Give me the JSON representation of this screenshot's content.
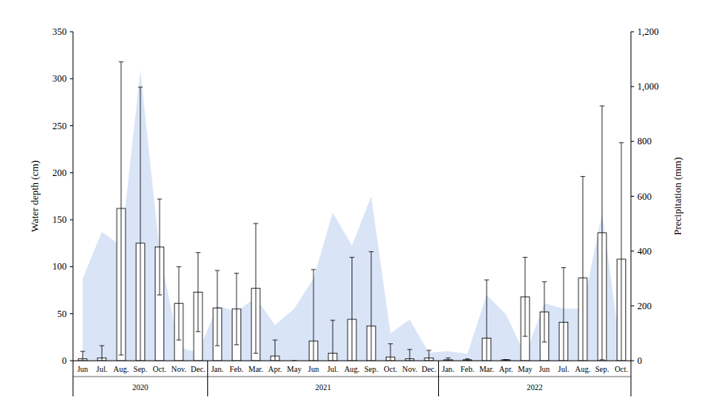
{
  "chart_data": {
    "type": "bar",
    "categories": [
      "Jun",
      "Jul.",
      "Aug.",
      "Sep.",
      "Oct.",
      "Nov.",
      "Dec.",
      "Jan.",
      "Feb.",
      "Mar.",
      "Apr.",
      "May",
      "Jun",
      "Jul.",
      "Aug.",
      "Sep.",
      "Oct.",
      "Nov.",
      "Dec.",
      "Jan.",
      "Feb.",
      "Mar.",
      "Apr.",
      "May",
      "Jun",
      "Jul.",
      "Aug.",
      "Sep.",
      "Oct."
    ],
    "x_groups": [
      {
        "label": "2020",
        "count": 7
      },
      {
        "label": "2021",
        "count": 12
      },
      {
        "label": "2022",
        "count": 10
      }
    ],
    "y_label": "Water depth (cm)",
    "y2_label": "Precipitation (mm)",
    "ylim": [
      0,
      350
    ],
    "yticks": [
      0,
      50,
      100,
      150,
      200,
      250,
      300,
      350
    ],
    "y2lim": [
      0,
      1200
    ],
    "y2ticks": [
      0,
      200,
      400,
      600,
      800,
      {
        "value": 1000,
        "label": "1,000"
      },
      {
        "value": 1200,
        "label": "1,200"
      }
    ],
    "series": [
      {
        "type": "bar",
        "color": "#ffffff",
        "values": [
          2,
          3,
          162,
          125,
          121,
          61,
          73,
          56,
          55,
          77,
          5,
          0,
          21,
          8,
          44,
          37,
          4,
          2,
          3,
          1,
          1,
          24,
          1,
          68,
          52,
          41,
          88,
          136,
          108
        ],
        "errors": [
          8,
          13,
          156,
          166,
          51,
          39,
          42,
          40,
          38,
          69,
          17,
          0,
          76,
          35,
          66,
          79,
          14,
          10,
          8,
          2,
          1,
          62,
          0,
          42,
          32,
          58,
          108,
          135,
          124
        ]
      },
      {
        "type": "area",
        "axis": "y2",
        "color": "#d9e4f7",
        "values": [
          300,
          470,
          420,
          1060,
          400,
          50,
          30,
          200,
          180,
          230,
          130,
          190,
          300,
          540,
          420,
          600,
          100,
          150,
          30,
          35,
          25,
          240,
          170,
          20,
          210,
          190,
          190,
          540,
          20
        ]
      }
    ]
  }
}
